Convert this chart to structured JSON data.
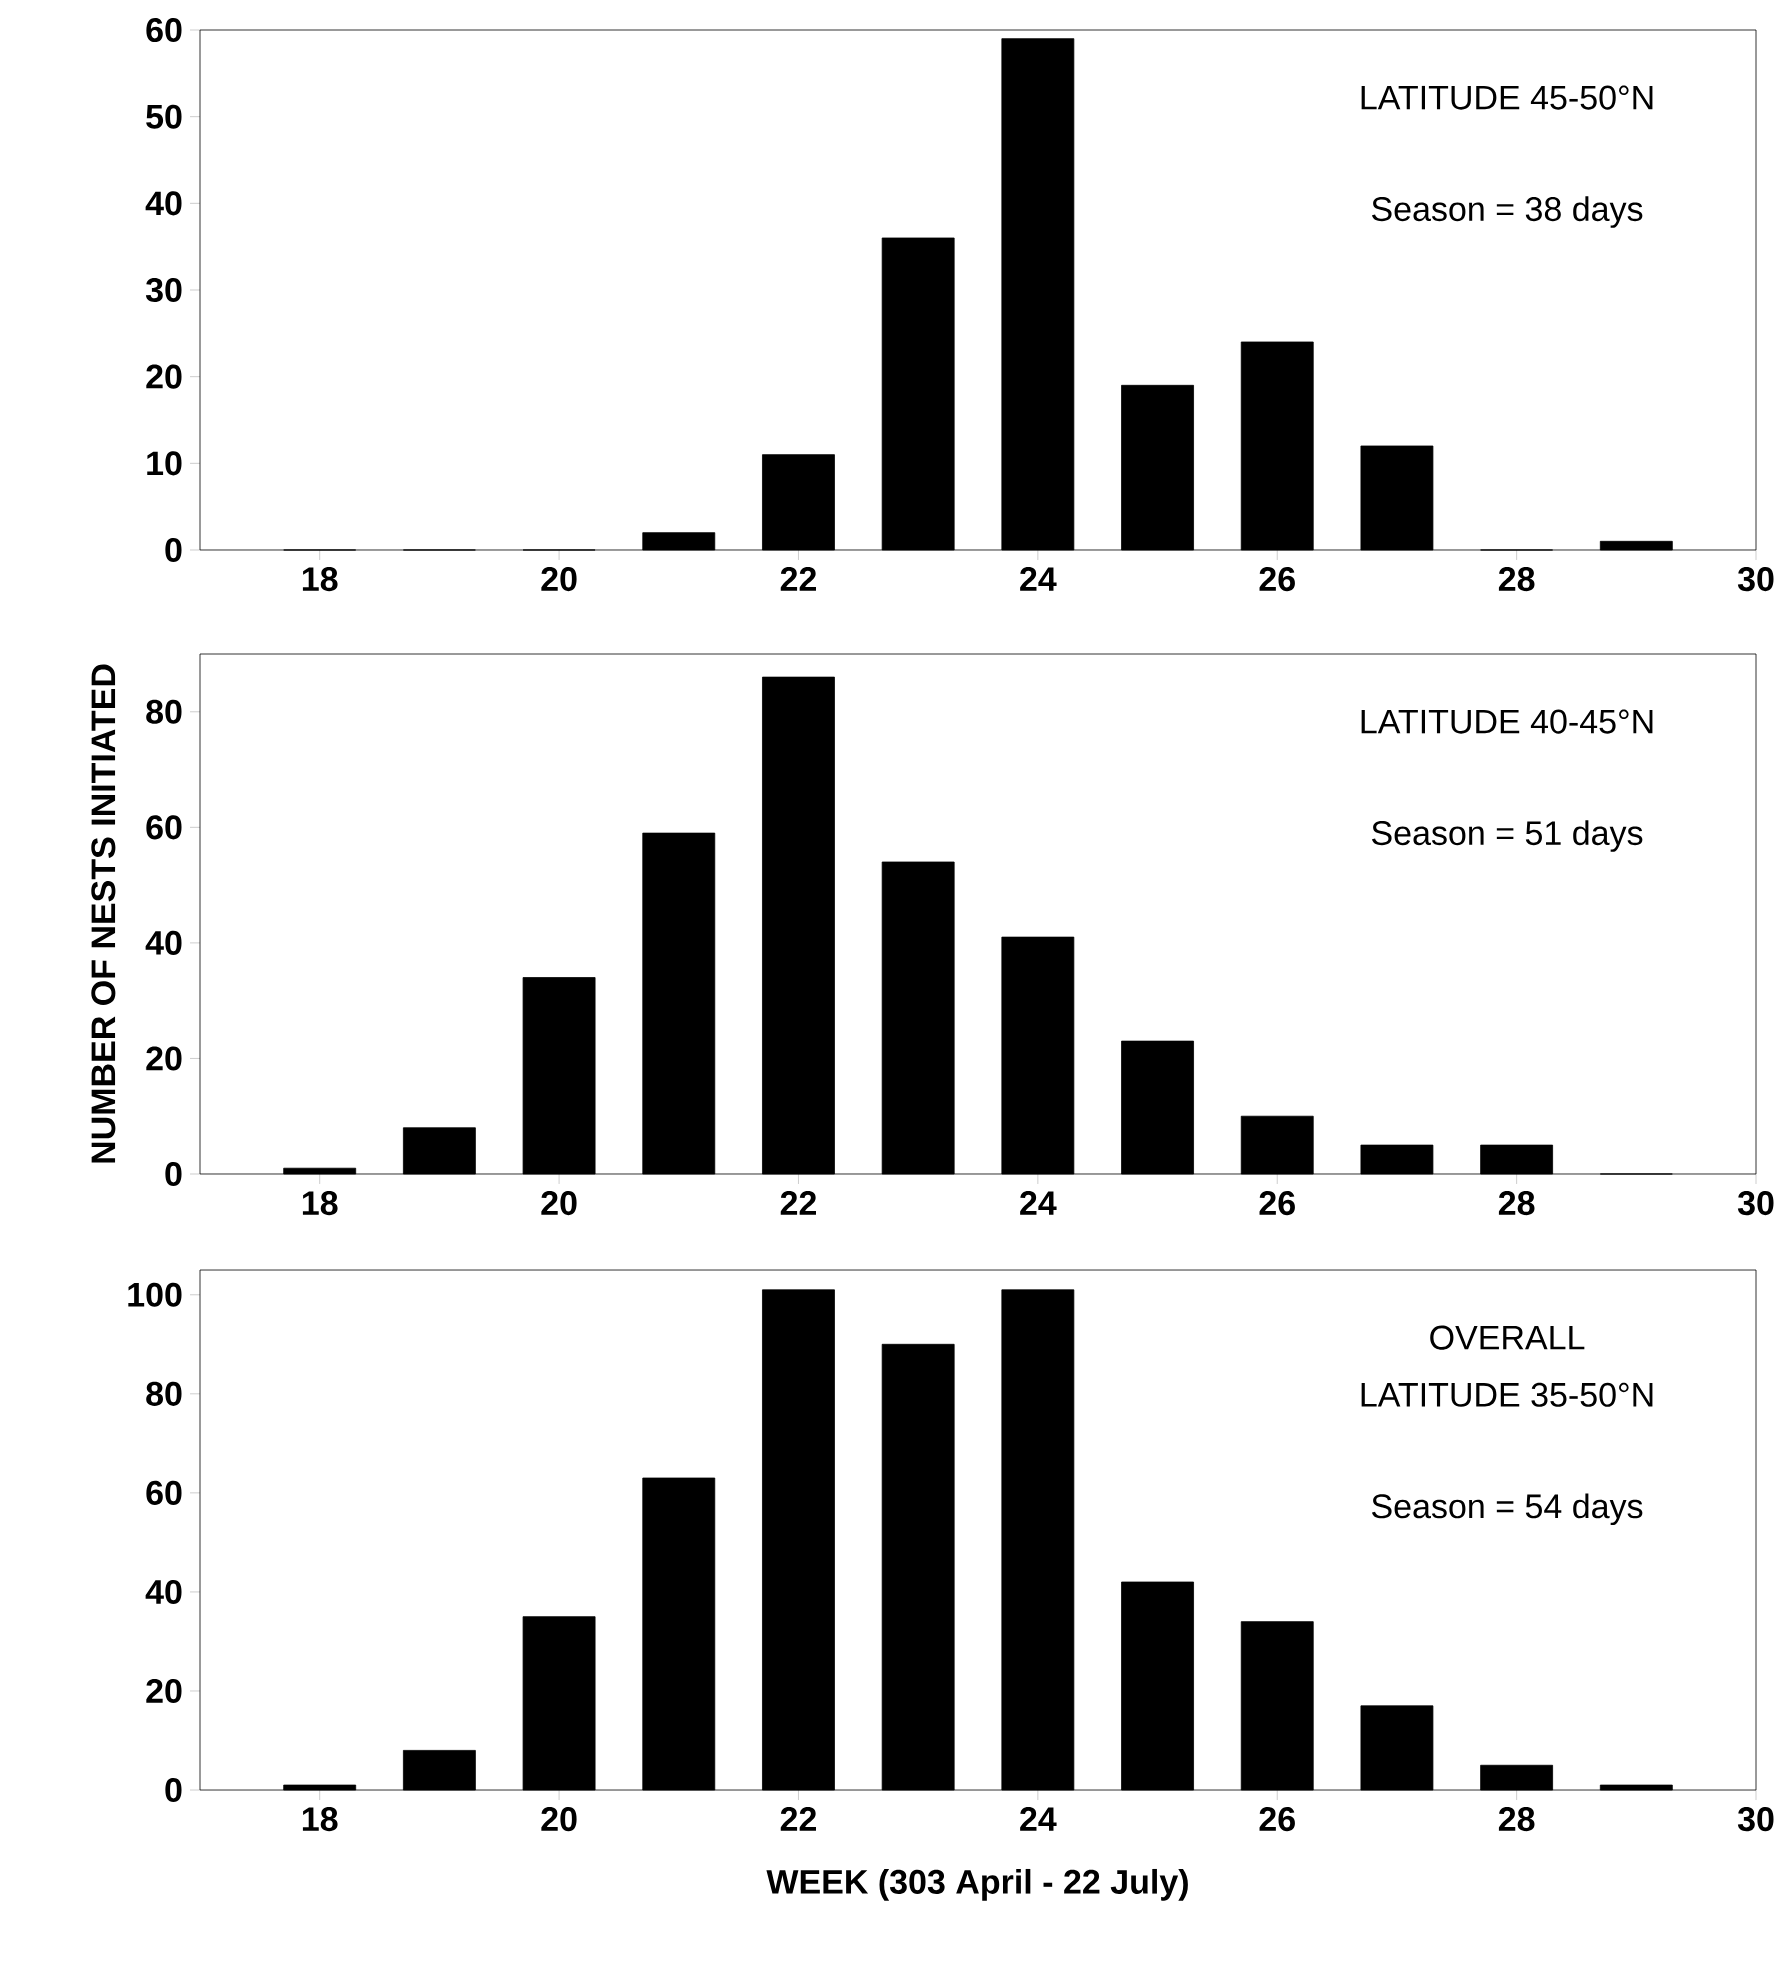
{
  "chart_data": [
    {
      "type": "bar",
      "x": [
        18,
        19,
        20,
        21,
        22,
        23,
        24,
        25,
        26,
        27,
        28,
        29
      ],
      "values": [
        0,
        0,
        0,
        2,
        11,
        36,
        59,
        19,
        24,
        12,
        0,
        1
      ],
      "color": "#000000",
      "xlim": [
        17,
        30
      ],
      "xticks": [
        18,
        20,
        22,
        24,
        26,
        28,
        30
      ],
      "ylim": [
        0,
        60
      ],
      "yticks": [
        0,
        10,
        20,
        30,
        40,
        50,
        60
      ],
      "annotations": [
        "LATITUDE 45-50°N",
        "Season = 38 days"
      ]
    },
    {
      "type": "bar",
      "x": [
        18,
        19,
        20,
        21,
        22,
        23,
        24,
        25,
        26,
        27,
        28,
        29
      ],
      "values": [
        1,
        8,
        34,
        59,
        86,
        54,
        41,
        23,
        10,
        5,
        5,
        0
      ],
      "color": "#000000",
      "xlim": [
        17,
        30
      ],
      "xticks": [
        18,
        20,
        22,
        24,
        26,
        28,
        30
      ],
      "ylim": [
        0,
        90
      ],
      "yticks": [
        0,
        20,
        40,
        60,
        80
      ],
      "ylabel": "NUMBER OF NESTS INITIATED",
      "annotations": [
        "LATITUDE 40-45°N",
        "Season = 51 days"
      ]
    },
    {
      "type": "bar",
      "x": [
        18,
        19,
        20,
        21,
        22,
        23,
        24,
        25,
        26,
        27,
        28,
        29
      ],
      "values": [
        1,
        8,
        35,
        63,
        101,
        90,
        101,
        42,
        34,
        17,
        5,
        1
      ],
      "color": "#000000",
      "xlim": [
        17,
        30
      ],
      "xticks": [
        18,
        20,
        22,
        24,
        26,
        28,
        30
      ],
      "ylim": [
        0,
        105
      ],
      "yticks": [
        0,
        20,
        40,
        60,
        80,
        100
      ],
      "xlabel": "WEEK (303 April - 22 July)",
      "annotations": [
        "OVERALL",
        "LATITUDE 35-50°N",
        "Season = 54 days"
      ]
    }
  ]
}
